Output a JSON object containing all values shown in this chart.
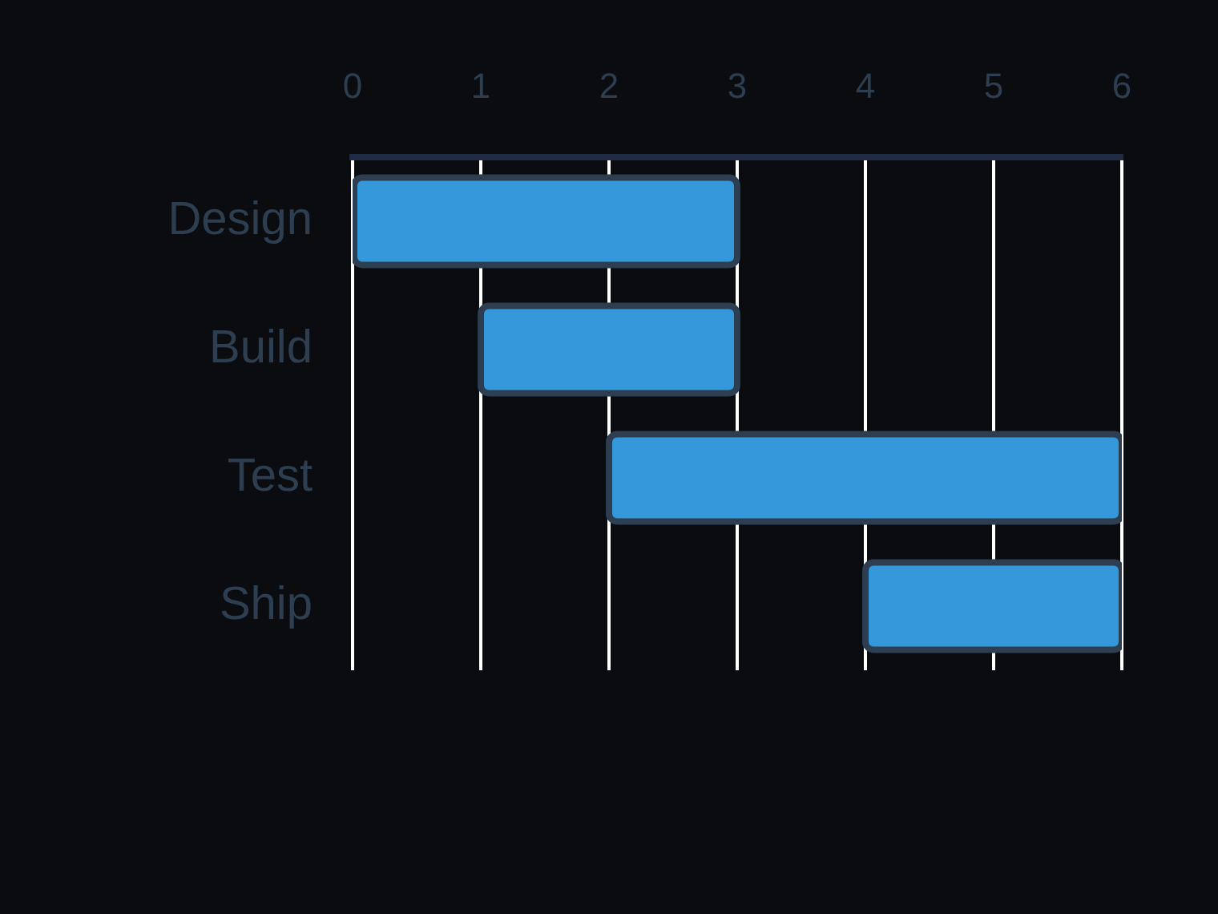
{
  "chart_data": {
    "type": "bar",
    "orientation": "horizontal",
    "categories": [
      "Design",
      "Build",
      "Test",
      "Ship"
    ],
    "base": [
      0,
      1,
      2,
      4
    ],
    "values": [
      3,
      2,
      4,
      2
    ],
    "color": "#3498db",
    "xlim": [
      0,
      6
    ],
    "xticks": [
      0,
      1,
      2,
      3,
      4,
      5,
      6
    ],
    "grid": "x"
  }
}
